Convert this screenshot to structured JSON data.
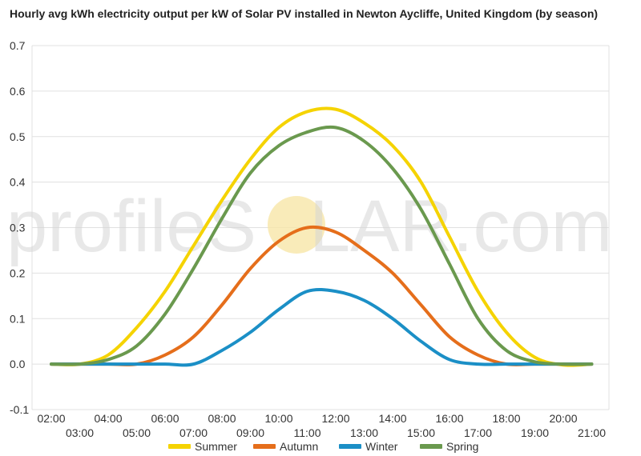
{
  "chart_data": {
    "type": "line",
    "title": "Hourly avg kWh electricity output per kW of Solar PV installed in Newton Aycliffe, United Kingdom (by season)",
    "xlabel": "",
    "ylabel": "",
    "ylim": [
      -0.1,
      0.7
    ],
    "yticks": [
      "-0.1",
      "0.0",
      "0.1",
      "0.2",
      "0.3",
      "0.4",
      "0.5",
      "0.6",
      "0.7"
    ],
    "grid": true,
    "legend": "bottom-center",
    "x": [
      "02:00",
      "03:00",
      "04:00",
      "05:00",
      "06:00",
      "07:00",
      "08:00",
      "09:00",
      "10:00",
      "11:00",
      "12:00",
      "13:00",
      "14:00",
      "15:00",
      "16:00",
      "17:00",
      "18:00",
      "19:00",
      "20:00",
      "21:00"
    ],
    "series": [
      {
        "name": "Summer",
        "color": "#f5d300",
        "values": [
          0.0,
          0.0,
          0.02,
          0.08,
          0.16,
          0.26,
          0.36,
          0.45,
          0.52,
          0.555,
          0.56,
          0.53,
          0.48,
          0.4,
          0.28,
          0.16,
          0.07,
          0.015,
          -0.002,
          0.0
        ]
      },
      {
        "name": "Autumn",
        "color": "#e56e1b",
        "values": [
          0.0,
          0.0,
          0.0,
          0.0,
          0.02,
          0.06,
          0.13,
          0.21,
          0.27,
          0.3,
          0.29,
          0.25,
          0.2,
          0.13,
          0.06,
          0.02,
          0.0,
          0.0,
          0.0,
          0.0
        ]
      },
      {
        "name": "Winter",
        "color": "#1b8fc6",
        "values": [
          0.0,
          0.0,
          0.0,
          0.0,
          0.0,
          0.0,
          0.03,
          0.07,
          0.12,
          0.16,
          0.16,
          0.14,
          0.1,
          0.05,
          0.01,
          0.0,
          0.0,
          0.0,
          0.0,
          0.0
        ]
      },
      {
        "name": "Spring",
        "color": "#6a994e",
        "values": [
          0.0,
          0.0,
          0.01,
          0.04,
          0.11,
          0.21,
          0.32,
          0.42,
          0.48,
          0.51,
          0.52,
          0.49,
          0.43,
          0.34,
          0.22,
          0.1,
          0.03,
          0.005,
          0.0,
          0.0
        ]
      }
    ]
  },
  "watermark": {
    "text": "profileSOLAR.com",
    "prefix": "profileS",
    "suffix": "LAR.com",
    "sun_color": "#f7e6a8"
  }
}
